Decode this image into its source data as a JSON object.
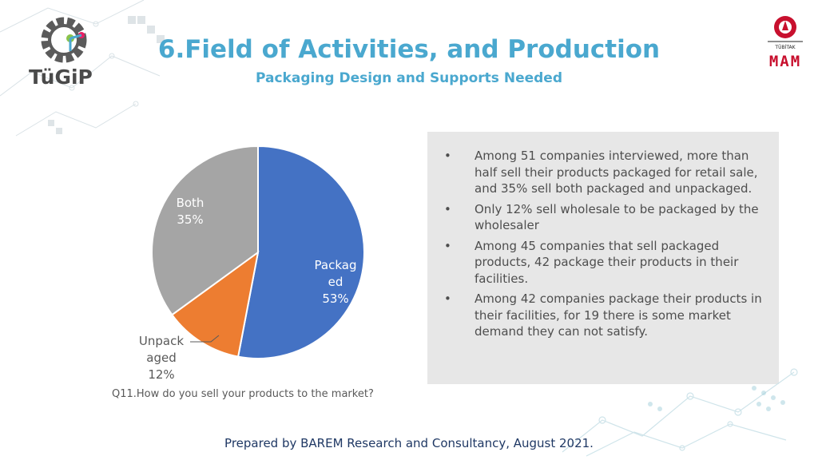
{
  "header": {
    "title": "6.Field of Activities, and Production",
    "subtitle": "Packaging Design and Supports Needed"
  },
  "logos": {
    "left": "TüGiP",
    "right_small": "TÜBİTAK",
    "right_big": "MAM"
  },
  "chart_data": {
    "type": "pie",
    "title": "",
    "slices": [
      {
        "label": "Packaged",
        "label_lines": [
          "Packag",
          "ed",
          "53%"
        ],
        "value": 53,
        "color": "#4472c4"
      },
      {
        "label": "Unpackaged",
        "label_lines": [
          "Unpack",
          "aged",
          "12%"
        ],
        "value": 12,
        "color": "#ed7d31"
      },
      {
        "label": "Both",
        "label_lines": [
          "Both",
          "35%"
        ],
        "value": 35,
        "color": "#a5a5a5"
      }
    ]
  },
  "question": "Q11.How do you sell your products to the market?",
  "notes": {
    "bullet": "•",
    "items": [
      "Among 51 companies interviewed, more than half sell their products packaged for retail sale, and 35% sell both packaged and unpackaged.",
      "Only 12% sell wholesale to be packaged by the wholesaler",
      "Among 45 companies that sell packaged products, 42 package their products in their facilities.",
      "Among 42 companies package their products in their facilities, for 19 there is some market demand they can not satisfy."
    ]
  },
  "footer": "Prepared by BAREM Research and Consultancy, August 2021."
}
